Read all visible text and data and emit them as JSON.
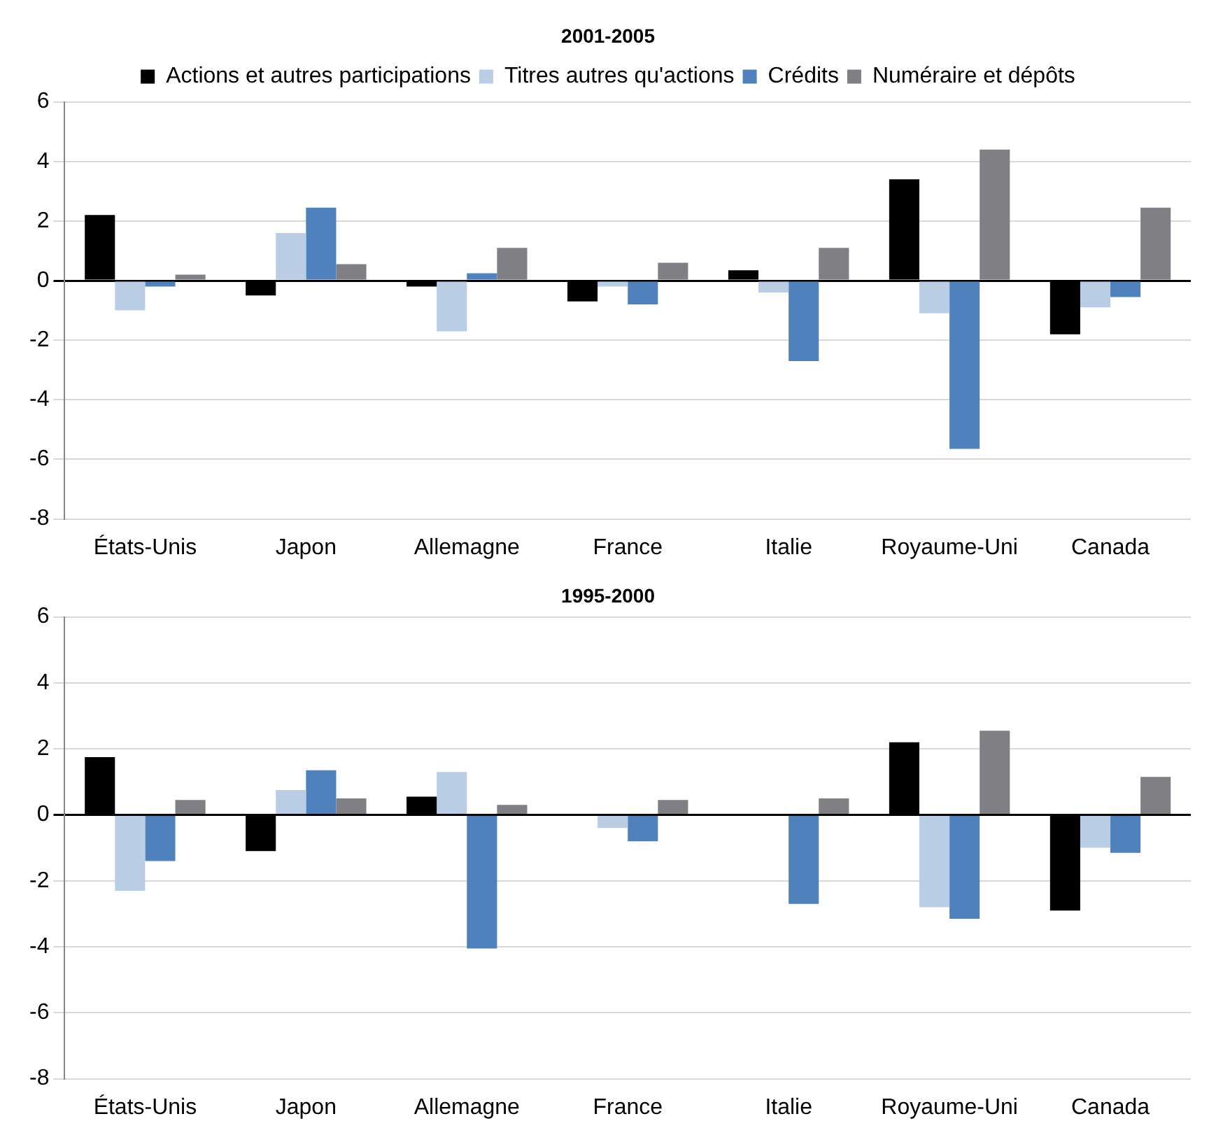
{
  "chart_data": [
    {
      "type": "bar",
      "title": "2001-2005",
      "categories": [
        "États-Unis",
        "Japon",
        "Allemagne",
        "France",
        "Italie",
        "Royaume-Uni",
        "Canada"
      ],
      "series": [
        {
          "name": "Actions et autres participations",
          "color": "#000000",
          "values": [
            2.2,
            -0.5,
            -0.2,
            -0.7,
            0.35,
            3.4,
            -1.8
          ]
        },
        {
          "name": "Titres autres qu'actions",
          "color": "#b9cde5",
          "values": [
            -1.0,
            1.6,
            -1.7,
            -0.2,
            -0.4,
            -1.1,
            -0.9
          ]
        },
        {
          "name": "Crédits",
          "color": "#4f81bd",
          "values": [
            -0.2,
            2.45,
            0.25,
            -0.8,
            -2.7,
            -5.65,
            -0.55
          ]
        },
        {
          "name": "Numéraire et dépôts",
          "color": "#7f7f84",
          "values": [
            0.2,
            0.55,
            1.1,
            0.6,
            1.1,
            4.4,
            2.45
          ]
        }
      ],
      "ylim": [
        -8,
        6
      ],
      "yticks": [
        -8,
        -6,
        -4,
        -2,
        0,
        2,
        4,
        6
      ],
      "grid": "y",
      "legend": "top"
    },
    {
      "type": "bar",
      "title": "1995-2000",
      "categories": [
        "États-Unis",
        "Japon",
        "Allemagne",
        "France",
        "Italie",
        "Royaume-Uni",
        "Canada"
      ],
      "series": [
        {
          "color": "#000000",
          "values": [
            1.75,
            -1.1,
            0.55,
            0,
            -0.02,
            2.2,
            -2.9
          ]
        },
        {
          "color": "#b9cde5",
          "values": [
            -2.3,
            0.75,
            1.3,
            -0.4,
            0,
            -2.8,
            -1.0
          ]
        },
        {
          "color": "#4f81bd",
          "values": [
            -1.4,
            1.35,
            -4.05,
            -0.8,
            -2.7,
            -3.15,
            -1.15
          ]
        },
        {
          "color": "#7f7f84",
          "values": [
            0.45,
            0.5,
            0.3,
            0.45,
            0.5,
            2.55,
            1.15
          ]
        }
      ],
      "ylim": [
        -8,
        6
      ],
      "yticks": [
        -8,
        -6,
        -4,
        -2,
        0,
        2,
        4,
        6
      ],
      "grid": "y",
      "legend": false
    }
  ]
}
